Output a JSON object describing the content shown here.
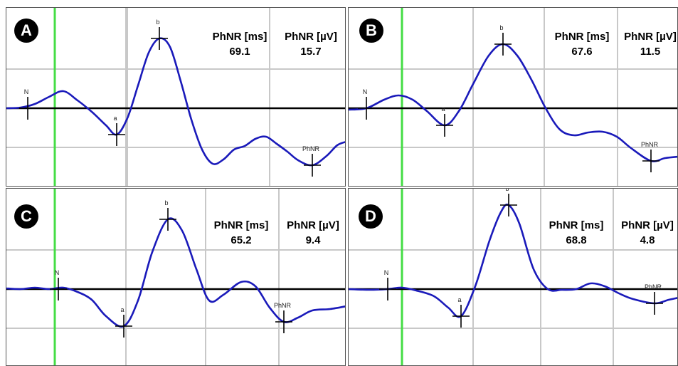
{
  "colors": {
    "trace": "#1a1aba",
    "baseline": "#000000",
    "grid": "#c8c8c8",
    "time_marker": "#44dd44",
    "badge": "#000000"
  },
  "chart_data": [
    {
      "type": "line",
      "panel": "A",
      "metrics": {
        "time_label": "PhNR [ms]",
        "time_value": "69.1",
        "amp_label": "PhNR [µV]",
        "amp_value": "15.7"
      },
      "markers": [
        {
          "label": "N",
          "x": 30,
          "y": 0
        },
        {
          "label": "a",
          "x": 155,
          "y": -37
        },
        {
          "label": "b",
          "x": 215,
          "y": 98
        },
        {
          "label": "PhNR",
          "x": 430,
          "y": -80
        }
      ],
      "trace": [
        [
          0,
          0
        ],
        [
          20,
          1
        ],
        [
          40,
          6
        ],
        [
          60,
          16
        ],
        [
          80,
          24
        ],
        [
          100,
          11
        ],
        [
          120,
          -5
        ],
        [
          140,
          -24
        ],
        [
          155,
          -37
        ],
        [
          170,
          -14
        ],
        [
          185,
          32
        ],
        [
          200,
          78
        ],
        [
          215,
          98
        ],
        [
          230,
          86
        ],
        [
          245,
          38
        ],
        [
          260,
          -16
        ],
        [
          275,
          -58
        ],
        [
          290,
          -78
        ],
        [
          305,
          -72
        ],
        [
          320,
          -58
        ],
        [
          335,
          -53
        ],
        [
          350,
          -43
        ],
        [
          365,
          -40
        ],
        [
          380,
          -50
        ],
        [
          395,
          -61
        ],
        [
          410,
          -73
        ],
        [
          430,
          -80
        ],
        [
          450,
          -67
        ],
        [
          465,
          -52
        ],
        [
          478,
          -47
        ]
      ]
    },
    {
      "type": "line",
      "panel": "B",
      "metrics": {
        "time_label": "PhNR [ms]",
        "time_value": "67.6",
        "amp_label": "PhNR [µV]",
        "amp_value": "11.5"
      },
      "markers": [
        {
          "label": "N",
          "x": 25,
          "y": 0
        },
        {
          "label": "a",
          "x": 135,
          "y": -24
        },
        {
          "label": "b",
          "x": 217,
          "y": 90
        },
        {
          "label": "PhNR",
          "x": 425,
          "y": -74
        }
      ],
      "trace": [
        [
          0,
          -2
        ],
        [
          25,
          0
        ],
        [
          50,
          12
        ],
        [
          70,
          18
        ],
        [
          90,
          12
        ],
        [
          110,
          -4
        ],
        [
          135,
          -24
        ],
        [
          155,
          -4
        ],
        [
          175,
          34
        ],
        [
          197,
          74
        ],
        [
          217,
          90
        ],
        [
          237,
          74
        ],
        [
          257,
          40
        ],
        [
          277,
          0
        ],
        [
          297,
          -30
        ],
        [
          317,
          -38
        ],
        [
          337,
          -34
        ],
        [
          357,
          -33
        ],
        [
          377,
          -40
        ],
        [
          397,
          -56
        ],
        [
          425,
          -74
        ],
        [
          445,
          -70
        ],
        [
          464,
          -68
        ]
      ]
    },
    {
      "type": "line",
      "panel": "C",
      "metrics": {
        "time_label": "PhNR [ms]",
        "time_value": "65.2",
        "amp_label": "PhNR [µV]",
        "amp_value": "9.4"
      },
      "markers": [
        {
          "label": "N",
          "x": 73,
          "y": 0
        },
        {
          "label": "a",
          "x": 165,
          "y": -52
        },
        {
          "label": "b",
          "x": 227,
          "y": 98
        },
        {
          "label": "PhNR",
          "x": 390,
          "y": -46
        }
      ],
      "trace": [
        [
          0,
          1
        ],
        [
          20,
          0
        ],
        [
          40,
          2
        ],
        [
          60,
          0
        ],
        [
          80,
          2
        ],
        [
          100,
          -4
        ],
        [
          120,
          -15
        ],
        [
          140,
          -38
        ],
        [
          165,
          -52
        ],
        [
          185,
          -16
        ],
        [
          205,
          52
        ],
        [
          227,
          98
        ],
        [
          247,
          82
        ],
        [
          267,
          28
        ],
        [
          285,
          -16
        ],
        [
          305,
          -8
        ],
        [
          330,
          10
        ],
        [
          350,
          4
        ],
        [
          370,
          -26
        ],
        [
          390,
          -46
        ],
        [
          410,
          -40
        ],
        [
          430,
          -30
        ],
        [
          455,
          -28
        ],
        [
          478,
          -24
        ]
      ]
    },
    {
      "type": "line",
      "panel": "D",
      "metrics": {
        "time_label": "PhNR [ms]",
        "time_value": "68.8",
        "amp_label": "PhNR [µV]",
        "amp_value": "4.8"
      },
      "markers": [
        {
          "label": "N",
          "x": 55,
          "y": 0
        },
        {
          "label": "a",
          "x": 158,
          "y": -38
        },
        {
          "label": "b",
          "x": 225,
          "y": 118
        },
        {
          "label": "PhNR",
          "x": 430,
          "y": -20
        }
      ],
      "trace": [
        [
          0,
          0
        ],
        [
          30,
          -1
        ],
        [
          55,
          0
        ],
        [
          75,
          2
        ],
        [
          95,
          -2
        ],
        [
          120,
          -10
        ],
        [
          140,
          -26
        ],
        [
          158,
          -38
        ],
        [
          178,
          4
        ],
        [
          198,
          68
        ],
        [
          214,
          108
        ],
        [
          225,
          118
        ],
        [
          240,
          92
        ],
        [
          260,
          28
        ],
        [
          280,
          0
        ],
        [
          300,
          -1
        ],
        [
          320,
          0
        ],
        [
          340,
          8
        ],
        [
          360,
          4
        ],
        [
          380,
          -6
        ],
        [
          400,
          -14
        ],
        [
          430,
          -20
        ],
        [
          450,
          -15
        ],
        [
          464,
          -12
        ]
      ]
    }
  ]
}
